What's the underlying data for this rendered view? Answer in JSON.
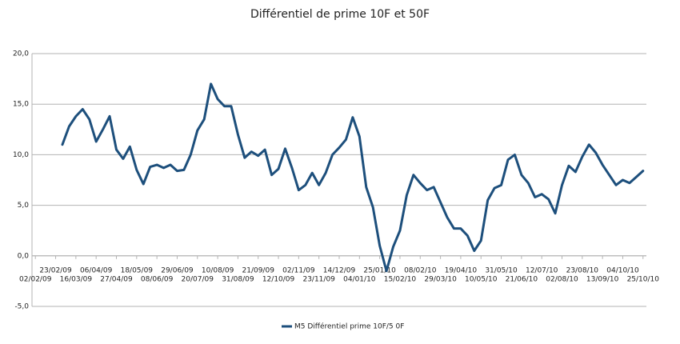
{
  "chart_data": {
    "type": "line",
    "title": "Différentiel de prime 10F et 50F",
    "categories": [
      "02/02/09",
      null,
      null,
      "23/02/09",
      null,
      null,
      "16/03/09",
      null,
      null,
      "06/04/09",
      null,
      null,
      "27/04/09",
      null,
      null,
      "18/05/09",
      null,
      null,
      "08/06/09",
      null,
      null,
      "29/06/09",
      null,
      null,
      "20/07/09",
      null,
      null,
      "10/08/09",
      null,
      null,
      "31/08/09",
      null,
      null,
      "21/09/09",
      null,
      null,
      "12/10/09",
      null,
      null,
      "02/11/09",
      null,
      null,
      "23/11/09",
      null,
      null,
      "14/12/09",
      null,
      null,
      "04/01/10",
      null,
      null,
      "25/01/10",
      null,
      null,
      "15/02/10",
      null,
      null,
      "08/02/10",
      null,
      null,
      "29/03/10",
      null,
      null,
      "19/04/10",
      null,
      null,
      "10/05/10",
      null,
      null,
      "31/05/10",
      null,
      null,
      "21/06/10",
      null,
      null,
      "12/07/10",
      null,
      null,
      "02/08/10",
      null,
      null,
      "23/08/10",
      null,
      null,
      "13/09/10",
      null,
      null,
      "04/10/10",
      null,
      null,
      "25/10/10"
    ],
    "series": [
      {
        "name": "M5 Différentiel prime 10F/5 0F",
        "color": "#1d4f7c",
        "values": [
          null,
          null,
          null,
          null,
          11.0,
          12.8,
          13.8,
          14.5,
          13.5,
          11.3,
          12.5,
          13.8,
          10.5,
          9.6,
          10.8,
          8.5,
          7.1,
          8.8,
          9.0,
          8.7,
          9.0,
          8.4,
          8.5,
          10.0,
          12.4,
          13.5,
          17.0,
          15.5,
          14.8,
          14.8,
          12.0,
          9.7,
          10.3,
          9.9,
          10.5,
          8.0,
          8.6,
          10.6,
          8.7,
          6.5,
          7.0,
          8.2,
          7.0,
          8.2,
          10.0,
          10.7,
          11.5,
          13.7,
          11.8,
          6.8,
          4.8,
          1.0,
          -1.5,
          0.9,
          2.5,
          6.0,
          8.0,
          7.2,
          6.5,
          6.8,
          5.3,
          3.8,
          2.7,
          2.7,
          2.0,
          0.5,
          1.5,
          5.5,
          6.7,
          7.0,
          9.5,
          10.0,
          8.0,
          7.2,
          5.8,
          6.1,
          5.6,
          4.2,
          7.0,
          8.9,
          8.3,
          9.8,
          11.0,
          10.2,
          9.0,
          8.0,
          7.0,
          7.5,
          7.2,
          7.8,
          8.4
        ]
      }
    ],
    "ylim": [
      -5,
      20
    ],
    "yticks": [
      {
        "value": -5,
        "label": "-5,0"
      },
      {
        "value": 0,
        "label": "0,0"
      },
      {
        "value": 5,
        "label": "5,0"
      },
      {
        "value": 10,
        "label": "10,0"
      },
      {
        "value": 15,
        "label": "15,0"
      },
      {
        "value": 20,
        "label": "20,0"
      }
    ],
    "grid": true,
    "legend": "bottom"
  }
}
